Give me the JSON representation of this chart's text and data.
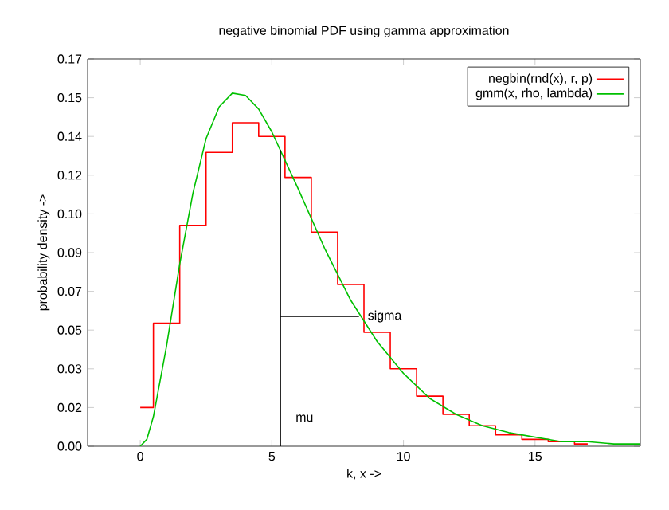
{
  "chart_data": {
    "type": "line",
    "title": "negative binomial PDF using gamma approximation",
    "xlabel": "k, x ->",
    "ylabel": "probability density ->",
    "xlim": [
      -2,
      19
    ],
    "ylim": [
      0,
      0.17
    ],
    "xticks": [
      0,
      5,
      10,
      15
    ],
    "yticks": [
      {
        "value": 0,
        "label": "0.00"
      },
      {
        "value": 0.017,
        "label": "0.02"
      },
      {
        "value": 0.034,
        "label": "0.03"
      },
      {
        "value": 0.051,
        "label": "0.05"
      },
      {
        "value": 0.068,
        "label": "0.07"
      },
      {
        "value": 0.085,
        "label": "0.09"
      },
      {
        "value": 0.102,
        "label": "0.10"
      },
      {
        "value": 0.119,
        "label": "0.12"
      },
      {
        "value": 0.136,
        "label": "0.14"
      },
      {
        "value": 0.153,
        "label": "0.15"
      },
      0.17
    ],
    "legend": "top right",
    "marker": "none",
    "line_style": "solid",
    "series": [
      {
        "name": "negbin(rnd(x), r, p)",
        "type": "step",
        "color": "#ff0000",
        "x": [
          0,
          1,
          2,
          3,
          4,
          5,
          6,
          7,
          8,
          9,
          10,
          11,
          12,
          13,
          14,
          15,
          16,
          17
        ],
        "values": [
          0.017,
          0.054,
          0.097,
          0.129,
          0.142,
          0.136,
          0.118,
          0.094,
          0.071,
          0.05,
          0.034,
          0.022,
          0.014,
          0.009,
          0.005,
          0.003,
          0.002,
          0.001
        ]
      },
      {
        "name": "gmm(x, rho, lambda)",
        "type": "line",
        "color": "#00c000",
        "x": [
          0,
          0.25,
          0.5,
          1,
          1.5,
          2,
          2.5,
          3,
          3.5,
          4,
          4.5,
          5,
          6,
          7,
          8,
          9,
          10,
          11,
          12,
          13,
          14,
          15,
          16,
          17,
          18,
          19
        ],
        "values": [
          0,
          0.003,
          0.013,
          0.044,
          0.08,
          0.111,
          0.135,
          0.149,
          0.155,
          0.154,
          0.148,
          0.138,
          0.113,
          0.087,
          0.064,
          0.046,
          0.032,
          0.021,
          0.014,
          0.009,
          0.006,
          0.004,
          0.002,
          0.002,
          0.001,
          0.001
        ]
      },
      {
        "name": "mu",
        "type": "line",
        "color": "#000000",
        "x": [
          5.33,
          5.33
        ],
        "values": [
          0,
          0.13
        ]
      },
      {
        "name": "sigma",
        "type": "line",
        "color": "#000000",
        "x": [
          5.33,
          8.31
        ],
        "values": [
          0.057,
          0.057
        ]
      }
    ]
  }
}
